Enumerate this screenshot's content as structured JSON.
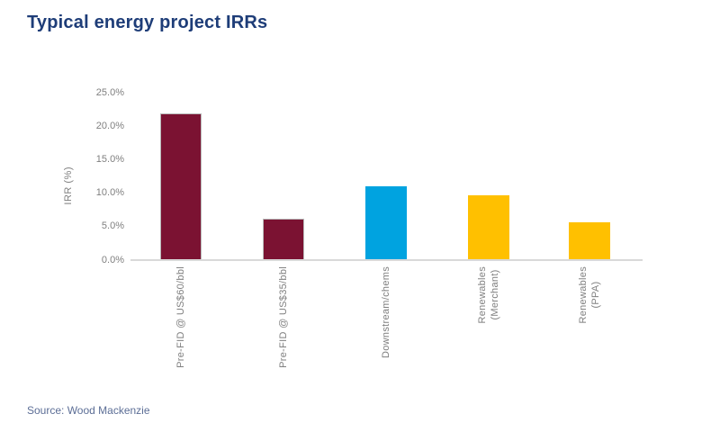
{
  "page": {
    "title": "Typical energy project IRRs",
    "source": "Source: Wood Mackenzie"
  },
  "colors": {
    "title_text": "#1E3D78",
    "source_text": "#5C6E96",
    "tick_text": "#7F7F7F",
    "axis_line": "#D9D9D9",
    "dark_red": "#7B1232",
    "blue": "#00A3E0",
    "yellow": "#FFC000",
    "bar_border": "#B9B9B9"
  },
  "chart_data": {
    "type": "bar",
    "title": "Typical energy project IRRs",
    "xlabel": "",
    "ylabel": "IRR  (%)",
    "ylim": [
      0,
      25
    ],
    "grid": false,
    "legend": "none",
    "ytick_values": [
      0,
      5,
      10,
      15,
      20,
      25
    ],
    "ytick_labels": [
      "0.0%",
      "5.0%",
      "10.0%",
      "15.0%",
      "20.0%",
      "25.0%"
    ],
    "categories": [
      "Pre-FID @ US$60/bbl",
      "Pre-FID @ US$35/bbl",
      "Downstream/chems",
      "Renewables\n(Merchant)",
      "Renewables\n(PPA)"
    ],
    "values": [
      22.0,
      6.2,
      11.0,
      9.7,
      5.7
    ],
    "bar_colors": [
      "#7B1232",
      "#7B1232",
      "#00A3E0",
      "#FFC000",
      "#FFC000"
    ],
    "bar_border": [
      true,
      true,
      false,
      false,
      false
    ]
  }
}
